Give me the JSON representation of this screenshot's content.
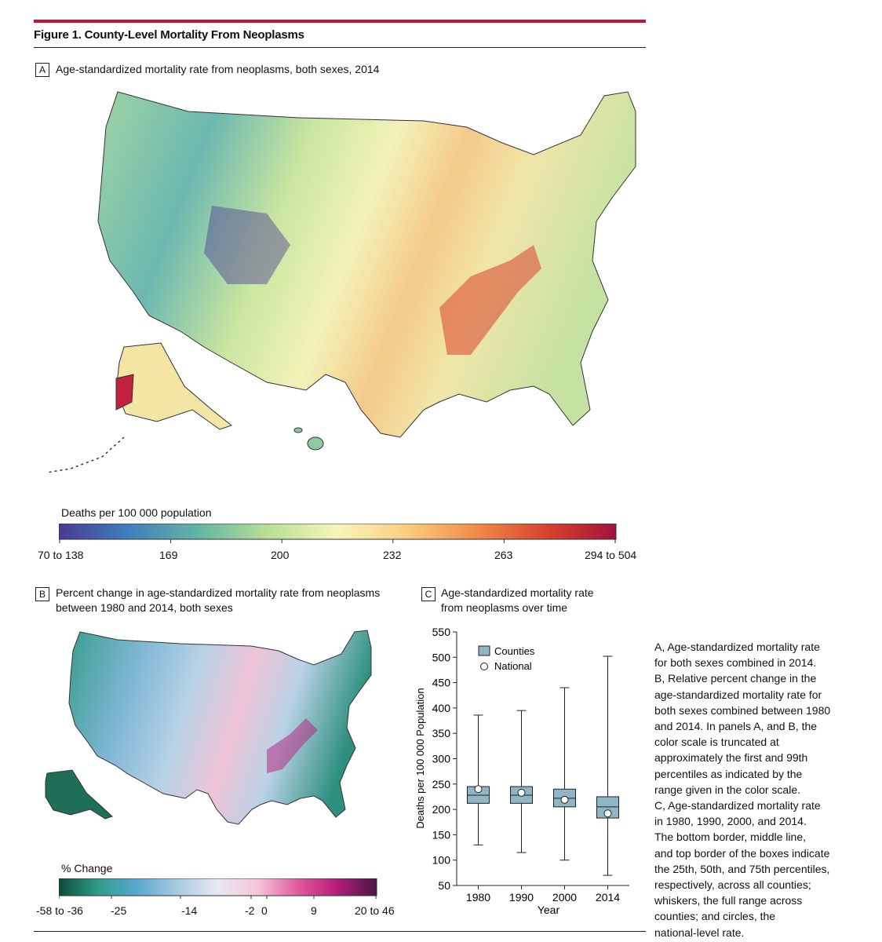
{
  "figure": {
    "title": "Figure 1. County-Level Mortality From Neoplasms"
  },
  "panel_a": {
    "letter": "A",
    "title": "Age-standardized mortality rate from neoplasms, both sexes, 2014",
    "colorbar": {
      "label": "Deaths per 100 000 population",
      "ticks": [
        "70 to 138",
        "169",
        "200",
        "232",
        "263",
        "294 to 504"
      ],
      "colors": [
        "#4a3a93",
        "#3f7fbd",
        "#63b5a4",
        "#b8df97",
        "#f6f5ba",
        "#fbcd7f",
        "#f08b47",
        "#d9422d",
        "#a3123d"
      ]
    }
  },
  "panel_b": {
    "letter": "B",
    "title_line1": "Percent change in age-standardized mortality rate from neoplasms",
    "title_line2": "between 1980 and 2014, both sexes",
    "colorbar": {
      "label": "% Change",
      "ticks": [
        "-58 to -36",
        "-25",
        "-14",
        "-2",
        "0",
        "9",
        "20 to 46"
      ],
      "colors": [
        "#0b4d3a",
        "#2e9d8a",
        "#5ba9d3",
        "#a9cbe3",
        "#e8e8f2",
        "#f6c6d8",
        "#e25b9d",
        "#b51c7a",
        "#4a1546"
      ]
    }
  },
  "panel_c": {
    "letter": "C",
    "title_line1": "Age-standardized mortality rate",
    "title_line2": "from neoplasms over time"
  },
  "chart_data": {
    "type": "box",
    "title": "Age-standardized mortality rate from neoplasms over time",
    "xlabel": "Year",
    "ylabel": "Deaths per 100 000 Population",
    "ylim": [
      50,
      550
    ],
    "yticks": [
      50,
      100,
      150,
      200,
      250,
      300,
      350,
      400,
      450,
      500,
      550
    ],
    "categories": [
      "1980",
      "1990",
      "2000",
      "2014"
    ],
    "series": [
      {
        "name": "Counties",
        "type": "box",
        "min": [
          130,
          115,
          100,
          70
        ],
        "q1": [
          212,
          212,
          205,
          183
        ],
        "median": [
          228,
          228,
          222,
          205
        ],
        "q3": [
          245,
          245,
          240,
          225
        ],
        "max": [
          386,
          395,
          440,
          502
        ]
      },
      {
        "name": "National",
        "type": "point",
        "values": [
          240,
          233,
          219,
          192
        ]
      }
    ],
    "legend": [
      "Counties",
      "National"
    ],
    "colors": {
      "box": "#8fb6c4",
      "box_edge": "#222222",
      "point": "#ffffff"
    }
  },
  "caption": {
    "lines": [
      "A, Age-standardized mortality rate",
      "for both sexes combined in 2014.",
      "B, Relative percent change in the",
      "age-standardized mortality rate for",
      "both sexes combined between 1980",
      "and 2014. In panels A, and B, the",
      "color scale is truncated at",
      "approximately the first and 99th",
      "percentiles as indicated by the",
      "range given in the color scale.",
      "C, Age-standardized mortality rate",
      "in 1980, 1990, 2000, and 2014.",
      "The bottom border, middle line,",
      "and top border of the boxes indicate",
      "the 25th, 50th, and 75th percentiles,",
      "respectively, across all counties;",
      "whiskers, the full range across",
      "counties; and circles, the",
      "national-level rate."
    ]
  }
}
